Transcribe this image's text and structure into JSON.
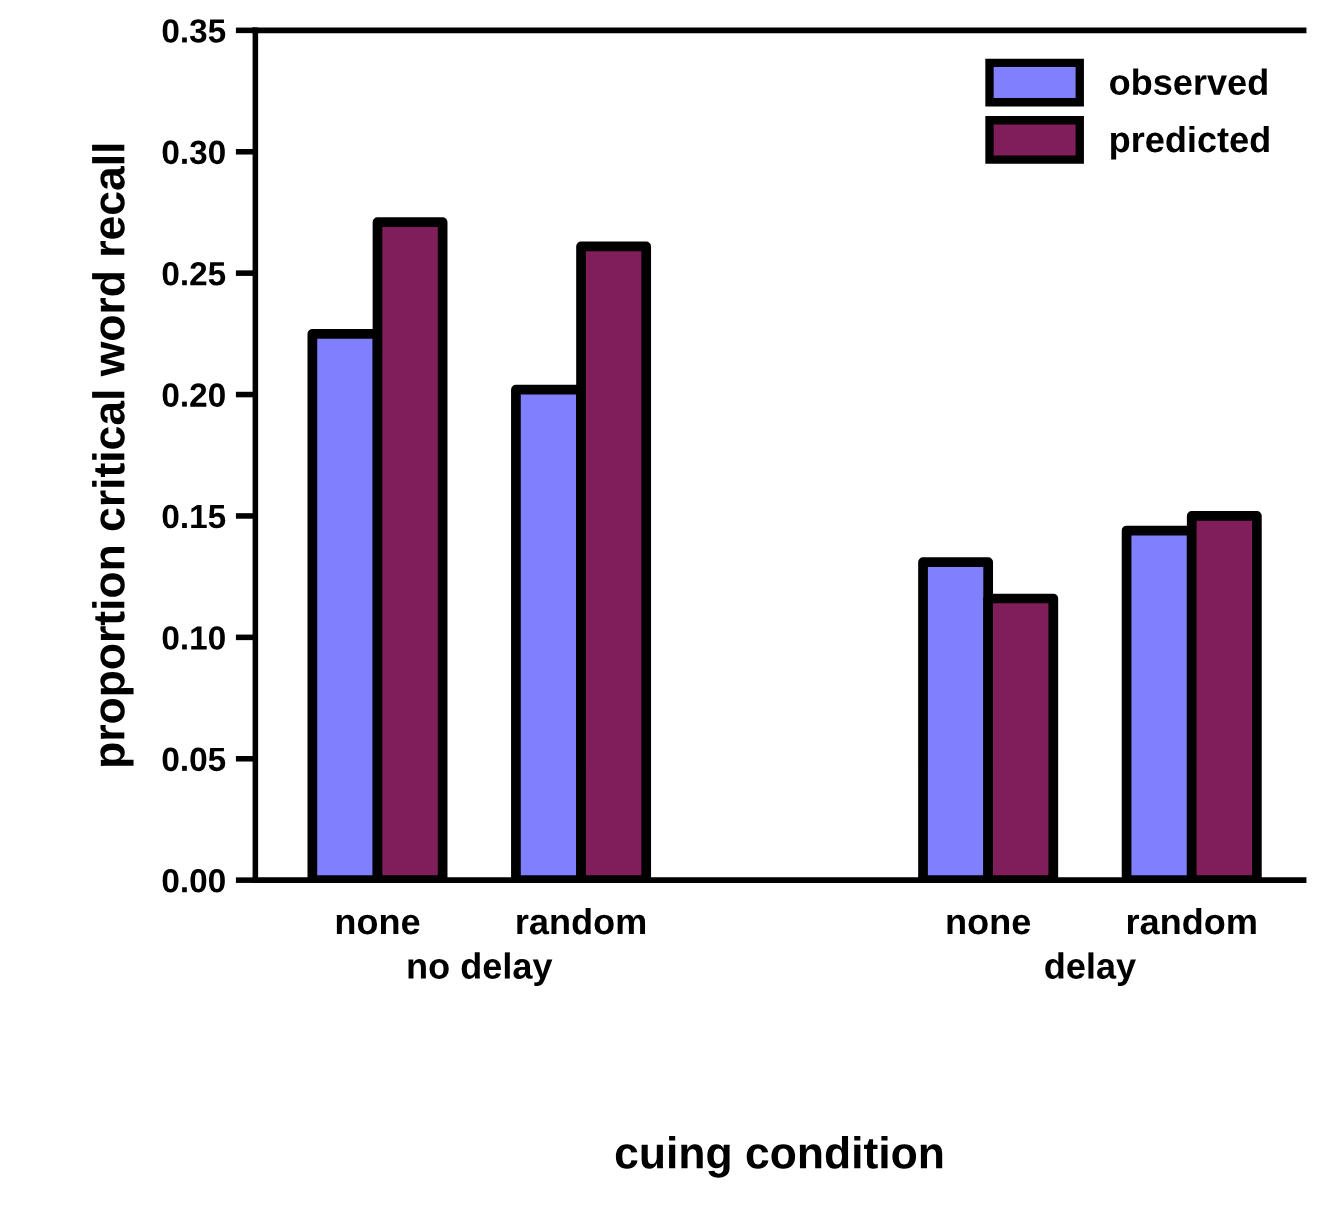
{
  "chart_data": {
    "type": "bar",
    "xlabel": "cuing condition",
    "ylabel": "proportion critical word recall",
    "categories": [
      "none",
      "random",
      null,
      "none",
      "random"
    ],
    "series": [
      {
        "name": "observed",
        "color": "#8080ff",
        "values": [
          0.225,
          0.202,
          null,
          0.131,
          0.144
        ]
      },
      {
        "name": "predicted",
        "color": "#801e5c",
        "values": [
          0.271,
          0.261,
          null,
          0.116,
          0.15
        ]
      }
    ],
    "annotations": [
      "no delay",
      "delay"
    ],
    "ylim": [
      0,
      0.35
    ],
    "yticks": [
      {
        "value": 0,
        "label": "0.00"
      },
      0.05,
      {
        "value": 0.1,
        "label": "0.10"
      },
      0.15,
      {
        "value": 0.2,
        "label": "0.20"
      },
      0.25,
      {
        "value": 0.3,
        "label": "0.30"
      },
      0.35
    ],
    "grid": false,
    "legend": "top right"
  }
}
